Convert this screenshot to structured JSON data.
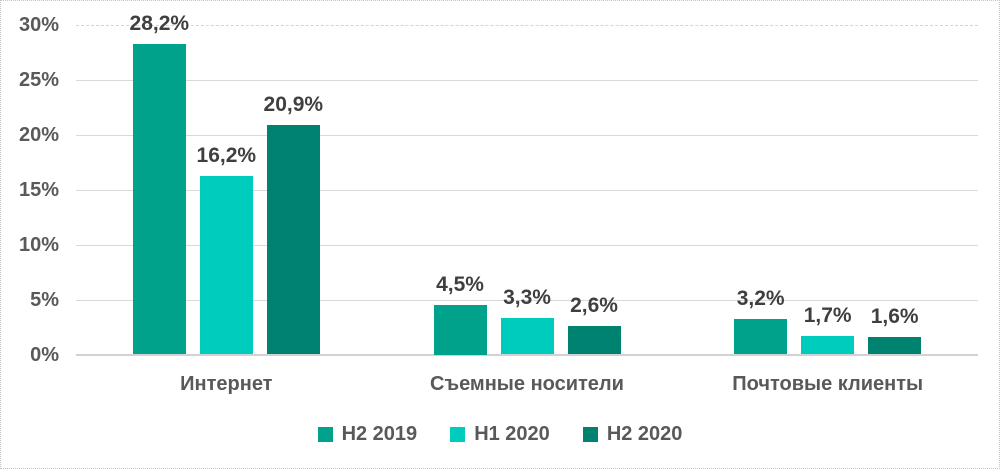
{
  "chart_data": {
    "type": "bar",
    "title": "",
    "xlabel": "",
    "ylabel": "",
    "ylim": [
      0,
      30
    ],
    "grid": true,
    "legend_position": "bottom",
    "value_format": "comma-decimal-percent",
    "categories": [
      "Интернет",
      "Съемные носители",
      "Почтовые клиенты"
    ],
    "series": [
      {
        "name": "H2 2019",
        "color": "#00A28C",
        "values": [
          28.2,
          4.5,
          3.2
        ],
        "labels": [
          "28,2%",
          "4,5%",
          "3,2%"
        ]
      },
      {
        "name": "H1 2020",
        "color": "#00CCBE",
        "values": [
          16.2,
          3.3,
          1.7
        ],
        "labels": [
          "16,2%",
          "3,3%",
          "1,7%"
        ]
      },
      {
        "name": "H2 2020",
        "color": "#008270",
        "values": [
          20.9,
          2.6,
          1.6
        ],
        "labels": [
          "20,9%",
          "2,6%",
          "1,6%"
        ]
      }
    ],
    "yticks": [
      {
        "value": 0,
        "label": "0%"
      },
      {
        "value": 5,
        "label": "5%"
      },
      {
        "value": 10,
        "label": "10%"
      },
      {
        "value": 15,
        "label": "15%"
      },
      {
        "value": 20,
        "label": "20%"
      },
      {
        "value": 25,
        "label": "25%"
      },
      {
        "value": 30,
        "label": "30%"
      }
    ],
    "style": {
      "gridline_color": "#d9d9d9",
      "axis_line_color": "#d2d2d2",
      "tick_text_color": "#595959",
      "data_label_color": "#3f3f3f",
      "background": "#ffffff",
      "border_color": "#c3c3c3"
    }
  }
}
